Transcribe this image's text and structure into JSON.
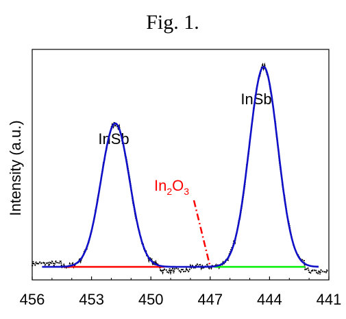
{
  "figure": {
    "title": "Fig. 1."
  },
  "chart_data": {
    "type": "line",
    "title": "Fig. 1.",
    "xlabel": "",
    "ylabel": "Intensity (a.u.)",
    "x_reversed": true,
    "xlim": [
      456,
      441
    ],
    "ylim": [
      -0.06,
      1.0
    ],
    "x_ticks": [
      456,
      453,
      450,
      447,
      444,
      441
    ],
    "grid": false,
    "peaks": [
      {
        "label": "InSb",
        "center": 451.8,
        "fwhm": 1.7,
        "height": 0.66
      },
      {
        "label": "InSb",
        "center": 444.3,
        "fwhm": 1.7,
        "height": 0.92
      }
    ],
    "oxide_annotation": {
      "label_base": "In",
      "sub1": "2",
      "mid": "O",
      "sub2": "3",
      "x": 447.0,
      "color": "#ff0000"
    },
    "background_segments": [
      {
        "x": [
          454.5,
          449.3
        ],
        "y": 0.0,
        "color": "#ff0000"
      },
      {
        "x": [
          446.8,
          442.2
        ],
        "y": 0.0,
        "color": "#00ee00"
      }
    ],
    "series": [
      {
        "role": "fit",
        "color": "#1010c8",
        "x_range": [
          455.5,
          441.5
        ],
        "baseline": 0.0
      },
      {
        "role": "data",
        "color": "#000000",
        "x_range": [
          456.0,
          441.0
        ],
        "noise": 0.012
      }
    ]
  }
}
